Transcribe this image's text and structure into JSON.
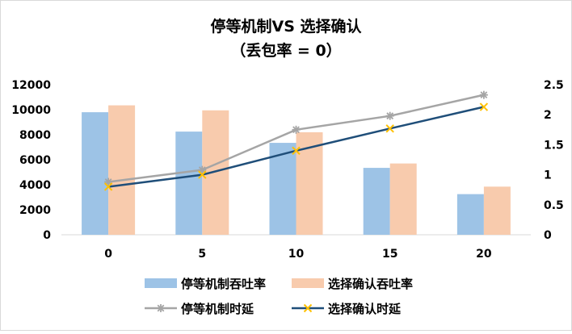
{
  "chart_data": {
    "type": "bar",
    "title": "停等机制VS 选择确认",
    "subtitle": "（丢包率 = 0）",
    "categories": [
      "0",
      "5",
      "10",
      "15",
      "20"
    ],
    "y_left": {
      "lim": [
        0,
        12000
      ],
      "ticks": [
        "0",
        "2000",
        "4000",
        "6000",
        "8000",
        "10000",
        "12000"
      ]
    },
    "y_right": {
      "lim": [
        0,
        2.5
      ],
      "ticks": [
        "0",
        "0.5",
        "1",
        "1.5",
        "2",
        "2.5"
      ]
    },
    "grid": false,
    "legend_position": "bottom",
    "bar_series": [
      {
        "name": "停等机制吞吐率",
        "color": "#9dc3e6",
        "values": [
          9800,
          8250,
          7350,
          5350,
          3250
        ]
      },
      {
        "name": "选择确认吞吐率",
        "color": "#f8cbad",
        "values": [
          10350,
          9950,
          8200,
          5700,
          3850
        ]
      }
    ],
    "line_series": [
      {
        "name": "停等机制时延",
        "color": "#a5a5a5",
        "marker": "star",
        "values": [
          0.88,
          1.08,
          1.75,
          1.98,
          2.33
        ],
        "axis": "right"
      },
      {
        "name": "选择确认时延",
        "color": "#1f4e79",
        "marker": "x",
        "marker_color": "#ffc000",
        "values": [
          0.8,
          1.0,
          1.4,
          1.77,
          2.13
        ],
        "axis": "right"
      }
    ]
  }
}
